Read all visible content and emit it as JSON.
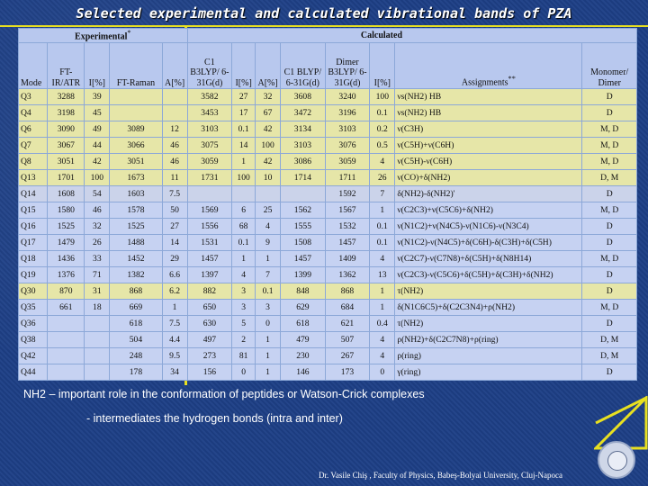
{
  "title": "Selected experimental and calculated vibrational bands of PZA",
  "table": {
    "header_groups": {
      "experimental": "Experimental",
      "experimental_mark": "*",
      "calculated": "Calculated"
    },
    "columns": [
      "Mode",
      "FT-IR/ATR",
      "I[%]",
      "FT-Raman",
      "A[%]",
      "C1 B3LYP/ 6-31G(d)",
      "I[%]",
      "A[%]",
      "C1 BLYP/ 6-31G(d)",
      "Dimer B3LYP/ 6-31G(d)",
      "I[%]",
      "Assignments",
      "Monomer/ Dimer"
    ],
    "assignments_mark": "**",
    "rows": [
      {
        "mode": "Q3",
        "ir": "3288",
        "i1": "39",
        "raman": "",
        "a1": "",
        "b3": "3582",
        "i2": "27",
        "a2": "32",
        "blyp": "3608",
        "dimer": "3240",
        "i3": "100",
        "assign": "νs(NH2) HB",
        "md": "D",
        "style": "hl"
      },
      {
        "mode": "Q4",
        "ir": "3198",
        "i1": "45",
        "raman": "",
        "a1": "",
        "b3": "3453",
        "i2": "17",
        "a2": "67",
        "blyp": "3472",
        "dimer": "3196",
        "i3": "0.1",
        "assign": "νs(NH2) HB",
        "md": "D",
        "style": "hl"
      },
      {
        "mode": "Q6",
        "ir": "3090",
        "i1": "49",
        "raman": "3089",
        "a1": "12",
        "b3": "3103",
        "i2": "0.1",
        "a2": "42",
        "blyp": "3134",
        "dimer": "3103",
        "i3": "0.2",
        "assign": "ν(C3H)",
        "md": "M, D",
        "style": "hl"
      },
      {
        "mode": "Q7",
        "ir": "3067",
        "i1": "44",
        "raman": "3066",
        "a1": "46",
        "b3": "3075",
        "i2": "14",
        "a2": "100",
        "blyp": "3103",
        "dimer": "3076",
        "i3": "0.5",
        "assign": "ν(C5H)+ν(C6H)",
        "md": "M, D",
        "style": "hl"
      },
      {
        "mode": "Q8",
        "ir": "3051",
        "i1": "42",
        "raman": "3051",
        "a1": "46",
        "b3": "3059",
        "i2": "1",
        "a2": "42",
        "blyp": "3086",
        "dimer": "3059",
        "i3": "4",
        "assign": "ν(C5H)-ν(C6H)",
        "md": "M, D",
        "style": "hl"
      },
      {
        "mode": "Q13",
        "ir": "1701",
        "i1": "100",
        "raman": "1673",
        "a1": "11",
        "b3": "1731",
        "i2": "100",
        "a2": "10",
        "blyp": "1714",
        "dimer": "1711",
        "i3": "26",
        "assign": "ν(CO)+δ(NH2)",
        "md": "D, M",
        "style": "hl"
      },
      {
        "mode": "Q14",
        "ir": "1608",
        "i1": "54",
        "raman": "1603",
        "a1": "7.5",
        "b3": "",
        "i2": "",
        "a2": "",
        "blyp": "",
        "dimer": "1592",
        "i3": "7",
        "assign": "δ(NH2)-δ(NH2)'",
        "md": "D",
        "style": "gr"
      },
      {
        "mode": "Q15",
        "ir": "1580",
        "i1": "46",
        "raman": "1578",
        "a1": "50",
        "b3": "1569",
        "i2": "6",
        "a2": "25",
        "blyp": "1562",
        "dimer": "1567",
        "i3": "1",
        "assign": "ν(C2C3)+ν(C5C6)+δ(NH2)",
        "md": "M, D",
        "style": "nl"
      },
      {
        "mode": "Q16",
        "ir": "1525",
        "i1": "32",
        "raman": "1525",
        "a1": "27",
        "b3": "1556",
        "i2": "68",
        "a2": "4",
        "blyp": "1555",
        "dimer": "1532",
        "i3": "0.1",
        "assign": "ν(N1C2)+ν(N4C5)-ν(N1C6)-ν(N3C4)",
        "md": "D",
        "style": "nl"
      },
      {
        "mode": "Q17",
        "ir": "1479",
        "i1": "26",
        "raman": "1488",
        "a1": "14",
        "b3": "1531",
        "i2": "0.1",
        "a2": "9",
        "blyp": "1508",
        "dimer": "1457",
        "i3": "0.1",
        "assign": "ν(N1C2)-ν(N4C5)+δ(C6H)-δ(C3H)+δ(C5H)",
        "md": "D",
        "style": "nl"
      },
      {
        "mode": "Q18",
        "ir": "1436",
        "i1": "33",
        "raman": "1452",
        "a1": "29",
        "b3": "1457",
        "i2": "1",
        "a2": "1",
        "blyp": "1457",
        "dimer": "1409",
        "i3": "4",
        "assign": "ν(C2C7)-ν(C7N8)+δ(C5H)+δ(N8H14)",
        "md": "M, D",
        "style": "nl"
      },
      {
        "mode": "Q19",
        "ir": "1376",
        "i1": "71",
        "raman": "1382",
        "a1": "6.6",
        "b3": "1397",
        "i2": "4",
        "a2": "7",
        "blyp": "1399",
        "dimer": "1362",
        "i3": "13",
        "assign": "ν(C2C3)-ν(C5C6)+δ(C5H)+δ(C3H)+δ(NH2)",
        "md": "D",
        "style": "nl"
      },
      {
        "mode": "Q30",
        "ir": "870",
        "i1": "31",
        "raman": "868",
        "a1": "6.2",
        "b3": "882",
        "i2": "3",
        "a2": "0.1",
        "blyp": "848",
        "dimer": "868",
        "i3": "1",
        "assign": "τ(NH2)",
        "md": "D",
        "style": "hl"
      },
      {
        "mode": "Q35",
        "ir": "661",
        "i1": "18",
        "raman": "669",
        "a1": "1",
        "b3": "650",
        "i2": "3",
        "a2": "3",
        "blyp": "629",
        "dimer": "684",
        "i3": "1",
        "assign": "δ(N1C6C5)+δ(C2C3N4)+ρ(NH2)",
        "md": "M, D",
        "style": "nl"
      },
      {
        "mode": "Q36",
        "ir": "",
        "i1": "",
        "raman": "618",
        "a1": "7.5",
        "b3": "630",
        "i2": "5",
        "a2": "0",
        "blyp": "618",
        "dimer": "621",
        "i3": "0.4",
        "assign": "τ(NH2)",
        "md": "D",
        "style": "nl"
      },
      {
        "mode": "Q38",
        "ir": "",
        "i1": "",
        "raman": "504",
        "a1": "4.4",
        "b3": "497",
        "i2": "2",
        "a2": "1",
        "blyp": "479",
        "dimer": "507",
        "i3": "4",
        "assign": "ρ(NH2)+δ(C2C7N8)+ρ(ring)",
        "md": "D, M",
        "style": "nl"
      },
      {
        "mode": "Q42",
        "ir": "",
        "i1": "",
        "raman": "248",
        "a1": "9.5",
        "b3": "273",
        "i2": "81",
        "a2": "1",
        "blyp": "230",
        "dimer": "267",
        "i3": "4",
        "assign": "ρ(ring)",
        "md": "D, M",
        "style": "nl"
      },
      {
        "mode": "Q44",
        "ir": "",
        "i1": "",
        "raman": "178",
        "a1": "34",
        "b3": "156",
        "i2": "0",
        "a2": "1",
        "blyp": "146",
        "dimer": "173",
        "i3": "0",
        "assign": "γ(ring)",
        "md": "D",
        "style": "nl"
      }
    ]
  },
  "notes": {
    "line1": "NH2 – important role in the conformation of peptides or Watson-Crick complexes",
    "line2": "- intermediates the hydrogen bonds (intra and inter)"
  },
  "footer": "Dr. Vasile Chiş , Faculty of Physics, Babeş-Bolyai University, Cluj-Napoca",
  "colors": {
    "background": "#1d3f86",
    "frame": "#e8e020",
    "highlight_row": "#e6e6a8",
    "normal_row": "#c6d2f2",
    "header_row": "#b8c8ee"
  }
}
